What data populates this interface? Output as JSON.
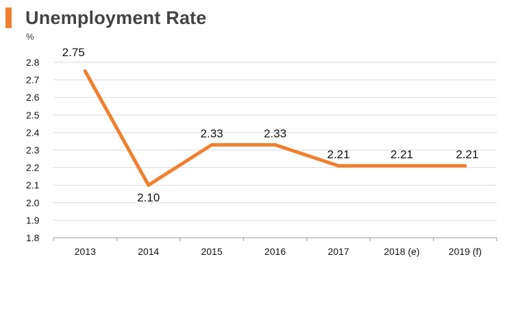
{
  "title": "Unemployment Rate",
  "colors": {
    "accent": "#f07f2d",
    "line": "#f07f2d",
    "grid": "#d9d9d9",
    "axis": "#999999",
    "title": "#444444"
  },
  "chart_data": {
    "type": "line",
    "title": "Unemployment Rate",
    "ylabel": "%",
    "xlabel": "",
    "categories": [
      "2013",
      "2014",
      "2015",
      "2016",
      "2017",
      "2018 (e)",
      "2019 (f)"
    ],
    "series": [
      {
        "name": "Unemployment Rate",
        "values": [
          2.75,
          2.1,
          2.33,
          2.33,
          2.21,
          2.21,
          2.21
        ],
        "labels": [
          "2.75",
          "2.10",
          "2.33",
          "2.33",
          "2.21",
          "2.21",
          "2.21"
        ]
      }
    ],
    "ylim": [
      1.8,
      2.8
    ],
    "yticks": [
      "1.8",
      "1.9",
      "2.0",
      "2.1",
      "2.2",
      "2.3",
      "2.4",
      "2.5",
      "2.6",
      "2.7",
      "2.8"
    ],
    "grid": true,
    "legend": "none"
  }
}
